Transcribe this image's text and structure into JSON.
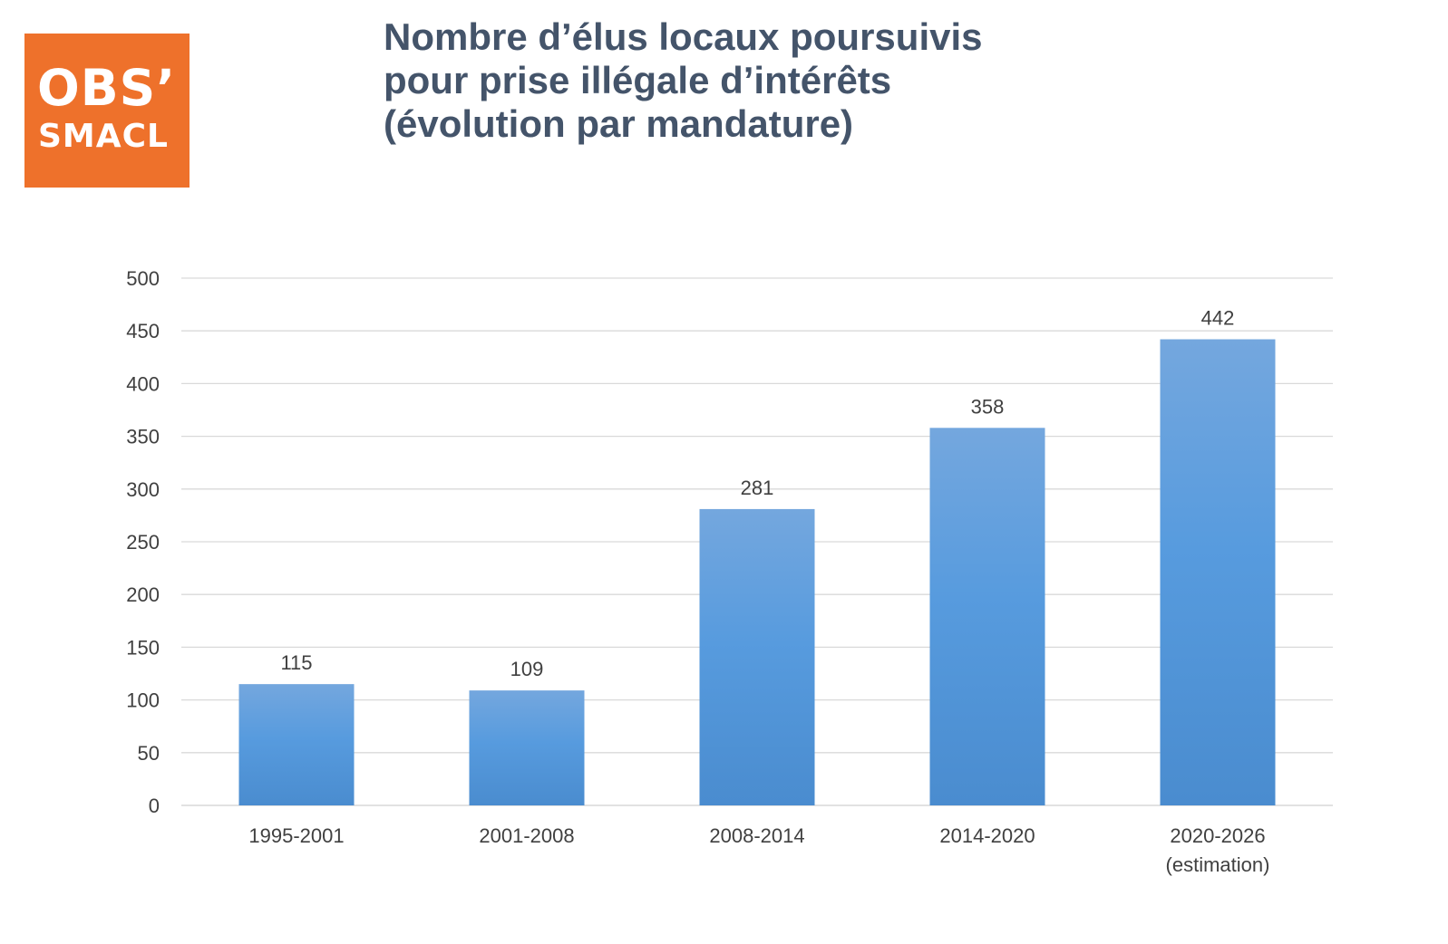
{
  "logo": {
    "line1": "OBS’",
    "line2": "SMACL"
  },
  "title": [
    "Nombre d’élus locaux poursuivis",
    "pour prise illégale d’intérêts",
    "(évolution par mandature)"
  ],
  "colors": {
    "bar_top": "#74a7de",
    "bar_bottom": "#4a8ccf",
    "logo_bg": "#ee712b",
    "title": "#44546a"
  },
  "chart_data": {
    "type": "bar",
    "categories": [
      "1995-2001",
      "2001-2008",
      "2008-2014",
      "2014-2020",
      "2020-2026\n(estimation)"
    ],
    "values": [
      115,
      109,
      281,
      358,
      442
    ],
    "data_labels": [
      "115",
      "109",
      "281",
      "358",
      "442"
    ],
    "ylim": [
      0,
      500
    ],
    "yticks": [
      0,
      50,
      100,
      150,
      200,
      250,
      300,
      350,
      400,
      450,
      500
    ],
    "grid": true,
    "legend": "none"
  }
}
